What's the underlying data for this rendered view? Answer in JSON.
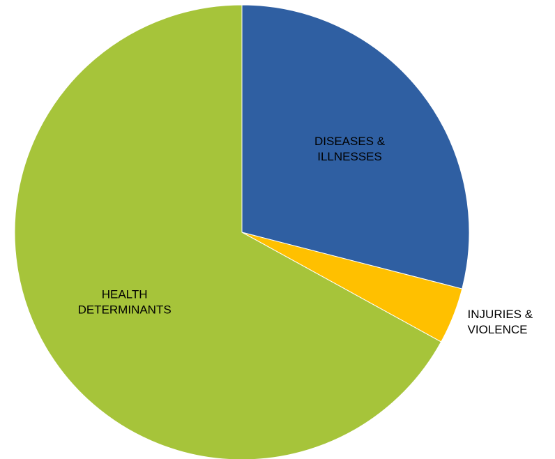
{
  "chart_data": {
    "type": "pie",
    "title": "",
    "start_angle_deg": 0,
    "direction": "clockwise",
    "slices": [
      {
        "label_lines": [
          "DISEASES &",
          "ILLNESSES"
        ],
        "value": 29.0,
        "color": "#2F5FA2",
        "label_position": "inside"
      },
      {
        "label_lines": [
          "INJURIES &",
          "VIOLENCE"
        ],
        "value": 4.0,
        "color": "#FFC000",
        "label_position": "outside"
      },
      {
        "label_lines": [
          "HEALTH",
          "DETERMINANTS"
        ],
        "value": 67.0,
        "color": "#A6C43A",
        "label_position": "inside"
      }
    ]
  }
}
